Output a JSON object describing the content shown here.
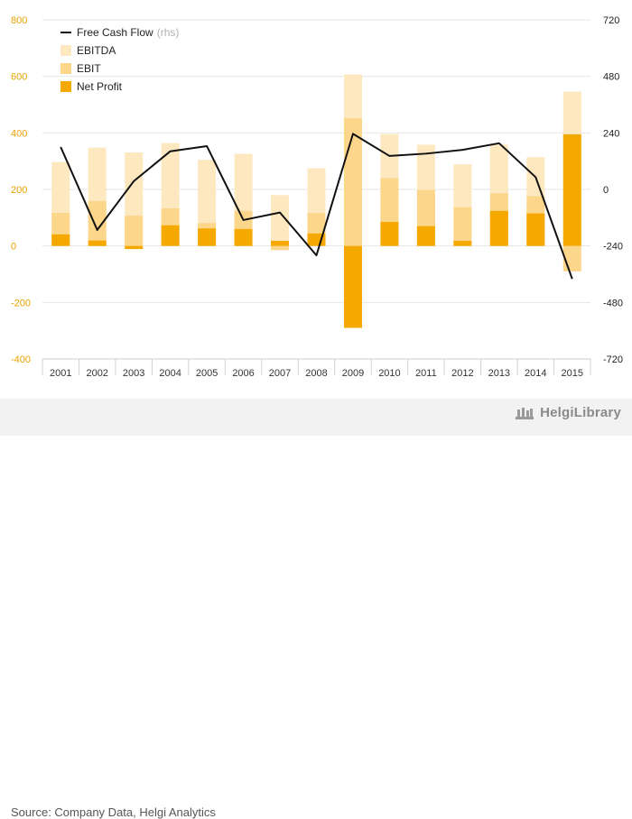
{
  "chart_data": {
    "type": "bar",
    "categories": [
      "2001",
      "2002",
      "2003",
      "2004",
      "2005",
      "2006",
      "2007",
      "2008",
      "2009",
      "2010",
      "2011",
      "2012",
      "2013",
      "2014",
      "2015"
    ],
    "series": [
      {
        "name": "EBITDA",
        "axis": "left",
        "color": "#fde8c0",
        "values": [
          297,
          348,
          331,
          364,
          305,
          326,
          180,
          275,
          607,
          396,
          358,
          289,
          359,
          314,
          546
        ]
      },
      {
        "name": "EBIT",
        "axis": "left",
        "color": "#fcd68a",
        "values": [
          117,
          159,
          107,
          133,
          81,
          124,
          -15,
          116,
          452,
          240,
          198,
          137,
          186,
          176,
          -90
        ]
      },
      {
        "name": "Net Profit",
        "axis": "left",
        "color": "#f5a800",
        "values": [
          41,
          19,
          -11,
          73,
          62,
          60,
          18,
          44,
          -290,
          85,
          70,
          18,
          124,
          115,
          395
        ]
      },
      {
        "name": "Free Cash Flow",
        "axis": "right",
        "type": "line",
        "color": "#111111",
        "values": [
          180,
          -172,
          35,
          162,
          184,
          -130,
          -98,
          -280,
          236,
          142,
          152,
          168,
          196,
          52,
          -380
        ]
      }
    ],
    "yleft": {
      "min": -400,
      "max": 800,
      "ticks": [
        "800",
        "600",
        "400",
        "200",
        "0",
        "-200",
        "-400"
      ]
    },
    "yright": {
      "min": -720,
      "max": 720,
      "ticks": [
        "720",
        "480",
        "240",
        "0",
        "-240",
        "-480",
        "-720"
      ]
    },
    "legend": {
      "position": "top-left",
      "items": [
        {
          "label": "Free Cash Flow",
          "suffix": "(rhs)",
          "type": "line",
          "color": "#111111"
        },
        {
          "label": "EBITDA",
          "type": "box",
          "color": "#fde8c0"
        },
        {
          "label": "EBIT",
          "type": "box",
          "color": "#fcd68a"
        },
        {
          "label": "Net Profit",
          "type": "box",
          "color": "#f5a800"
        }
      ]
    }
  },
  "footer": {
    "source": "Source: Company Data, Helgi Analytics",
    "brand": "HelgiLibrary"
  }
}
